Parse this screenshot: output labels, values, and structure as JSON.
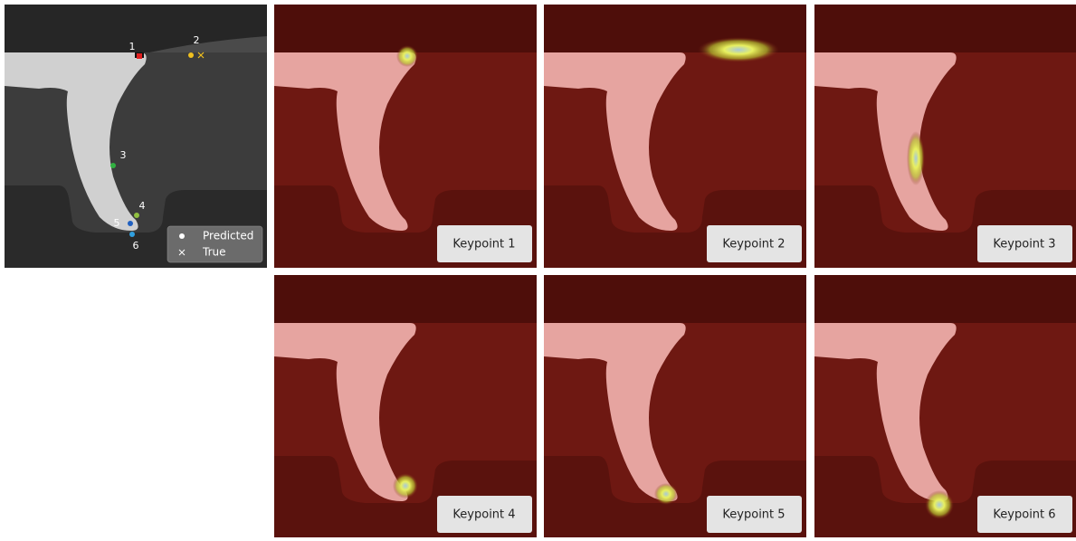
{
  "keypoint_labels": [
    "1",
    "2",
    "3",
    "4",
    "5",
    "6"
  ],
  "legend": {
    "predicted": "Predicted",
    "true": "True"
  },
  "panels": [
    {
      "label": "Keypoint 1"
    },
    {
      "label": "Keypoint 2"
    },
    {
      "label": "Keypoint 3"
    },
    {
      "label": "Keypoint 4"
    },
    {
      "label": "Keypoint 5"
    },
    {
      "label": "Keypoint 6"
    }
  ]
}
